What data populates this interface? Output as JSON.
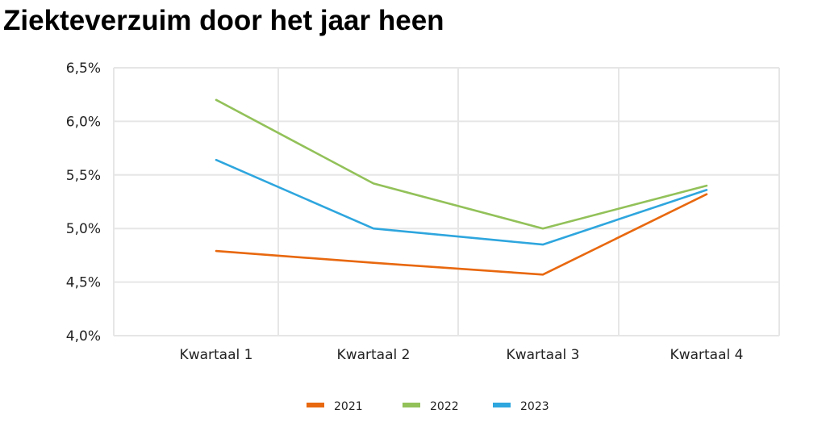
{
  "chart_data": {
    "type": "line",
    "title": "Ziekteverzuim door het jaar heen",
    "categories": [
      "Kwartaal 1",
      "Kwartaal 2",
      "Kwartaal 3",
      "Kwartaal 4"
    ],
    "series": [
      {
        "name": "2021",
        "values": [
          4.79,
          4.68,
          4.57,
          5.32
        ],
        "color": "#E8680F"
      },
      {
        "name": "2022",
        "values": [
          6.2,
          5.42,
          5.0,
          5.4
        ],
        "color": "#92C159"
      },
      {
        "name": "2023",
        "values": [
          5.64,
          5.0,
          4.85,
          5.36
        ],
        "color": "#2EA6DE"
      }
    ],
    "ylim": [
      4.0,
      6.5
    ],
    "yticks": [
      {
        "value": 6.5,
        "label": "6,5%"
      },
      {
        "value": 6.0,
        "label": "6,0%"
      },
      {
        "value": 5.5,
        "label": "5,5%"
      },
      {
        "value": 5.0,
        "label": "5,0%"
      },
      {
        "value": 4.5,
        "label": "4,5%"
      },
      {
        "value": 4.0,
        "label": "4,0%"
      }
    ],
    "xlabel": "",
    "ylabel": "",
    "grid": true,
    "gridColor": "#E6E6E6",
    "legend_position": "bottom"
  }
}
